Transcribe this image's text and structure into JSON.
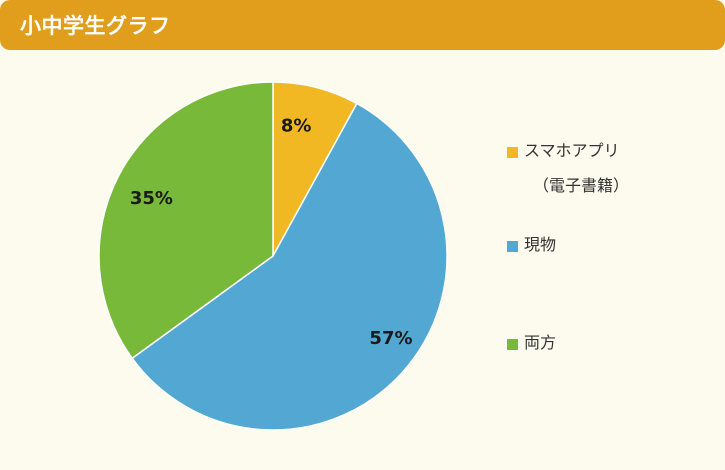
{
  "header": {
    "title": "小中学生グラフ"
  },
  "chart_data": {
    "type": "pie",
    "title": "",
    "slices": [
      {
        "label": "スマホアプリ",
        "label_sub": "（電子書籍）",
        "value": 8,
        "display": "8%",
        "color": "#f2b823"
      },
      {
        "label": "現物",
        "value": 57,
        "display": "57%",
        "color": "#52a8d3"
      },
      {
        "label": "両方",
        "value": 35,
        "display": "35%",
        "color": "#78b939"
      }
    ],
    "start": "12 o'clock",
    "direction": "clockwise",
    "legend": "right"
  }
}
